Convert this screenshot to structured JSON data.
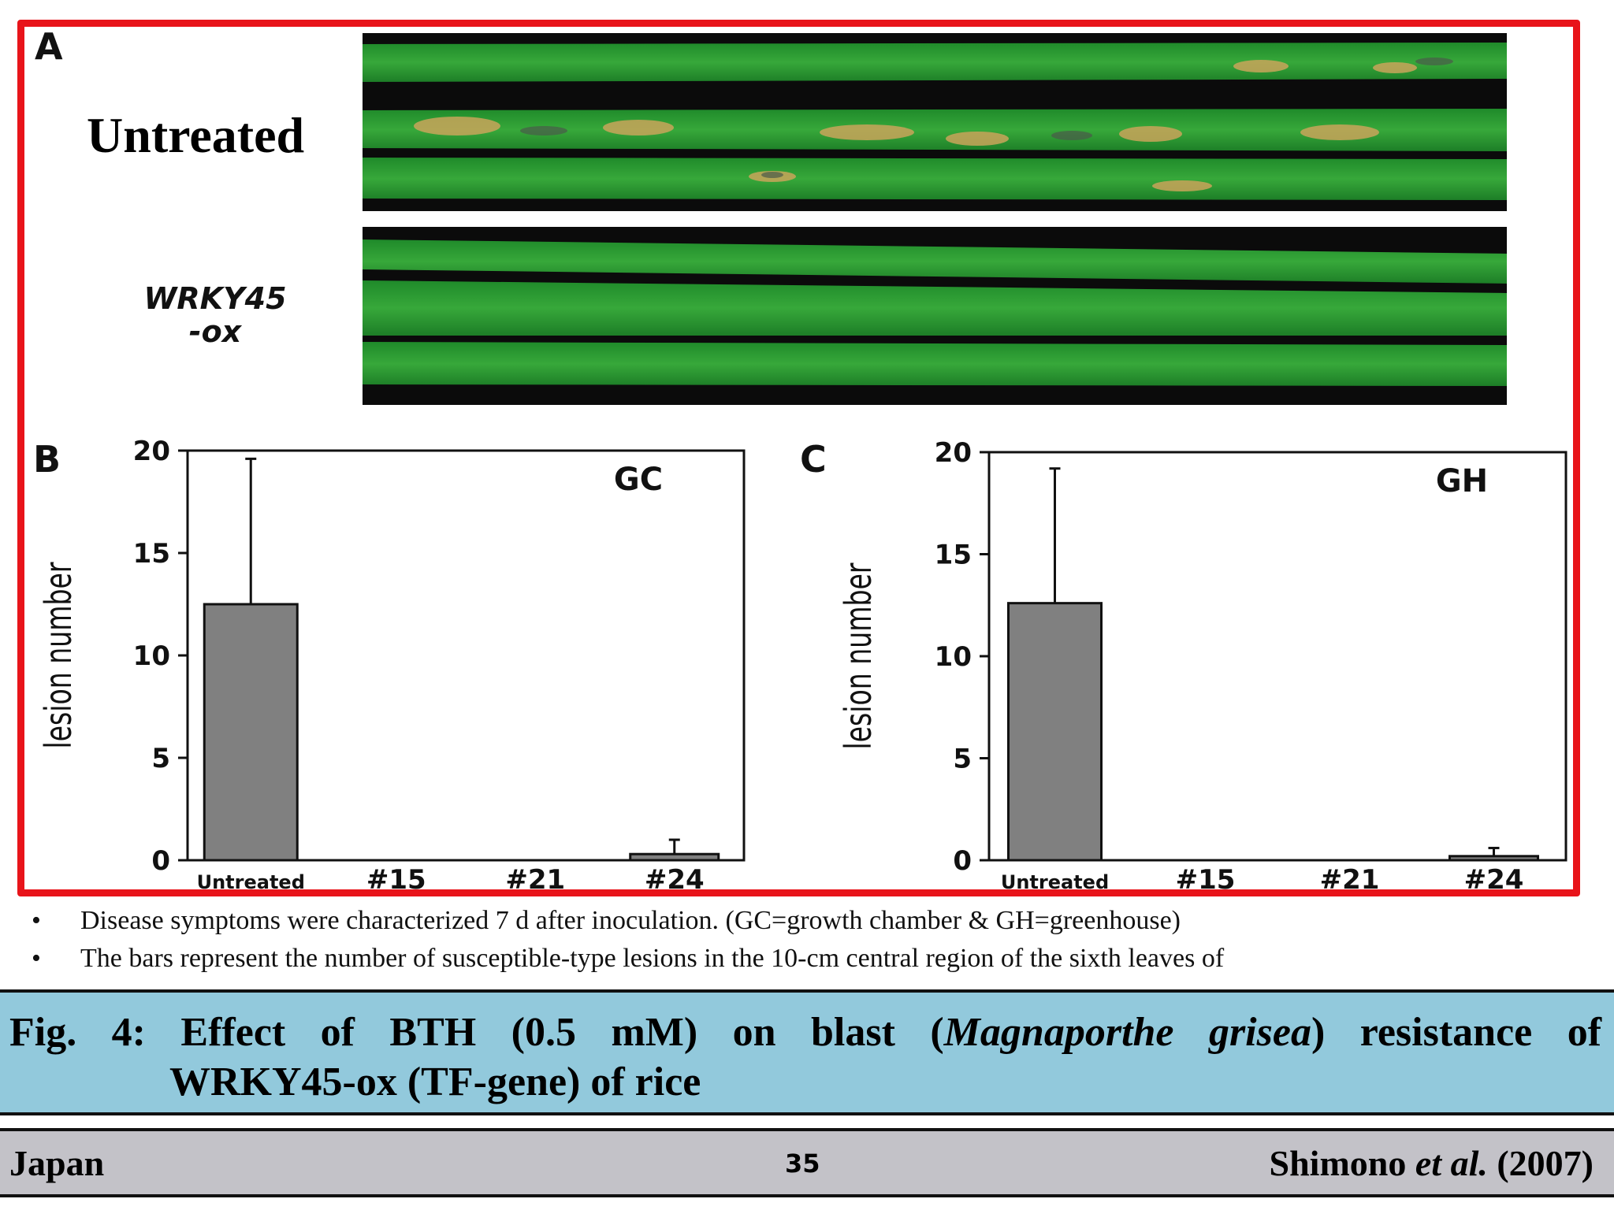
{
  "figure": {
    "panel_a_letter": "A",
    "row1_label": "Untreated",
    "row2_label_line1": "WRKY45",
    "row2_label_line2": "-ox",
    "panel_b_letter": "B",
    "panel_c_letter": "C",
    "frame_color": "#e8141a"
  },
  "chart_data": [
    {
      "type": "bar",
      "panel": "B",
      "title": "GC",
      "ylabel": "lesion number",
      "xlabel": "",
      "categories": [
        "Untreated",
        "#15",
        "#21",
        "#24"
      ],
      "values": [
        12.5,
        0,
        0,
        0.3
      ],
      "error_upper": [
        19.6,
        0,
        0,
        1.0
      ],
      "ylim": [
        0,
        20
      ],
      "yticks": [
        "0",
        "5",
        "10",
        "15",
        "20"
      ],
      "bar_color": "#808080"
    },
    {
      "type": "bar",
      "panel": "C",
      "title": "GH",
      "ylabel": "lesion number",
      "xlabel": "",
      "categories": [
        "Untreated",
        "#15",
        "#21",
        "#24"
      ],
      "values": [
        12.6,
        0,
        0,
        0.2
      ],
      "error_upper": [
        19.2,
        0,
        0,
        0.6
      ],
      "ylim": [
        0,
        20
      ],
      "yticks": [
        "0",
        "5",
        "10",
        "15",
        "20"
      ],
      "bar_color": "#808080"
    }
  ],
  "bullets": [
    "Disease symptoms were characterized 7 d after inoculation.  (GC=growth chamber & GH=greenhouse)",
    "The bars represent the number of susceptible-type lesions in the 10-cm central region of the sixth leaves of"
  ],
  "caption": {
    "prefix": "Fig. 4: Effect of BTH (0.5 mM) on blast (",
    "italic": "Magnaporthe grisea",
    "suffix": ") resistance of",
    "line2": "WRKY45-ox (TF-gene) of rice",
    "bg_color": "#92c9dc"
  },
  "footer": {
    "left": "Japan",
    "page": "35",
    "right_prefix": "Shimono ",
    "right_italic": "et al.",
    "right_suffix": " (2007)",
    "bg_color": "#c3c2c8"
  }
}
